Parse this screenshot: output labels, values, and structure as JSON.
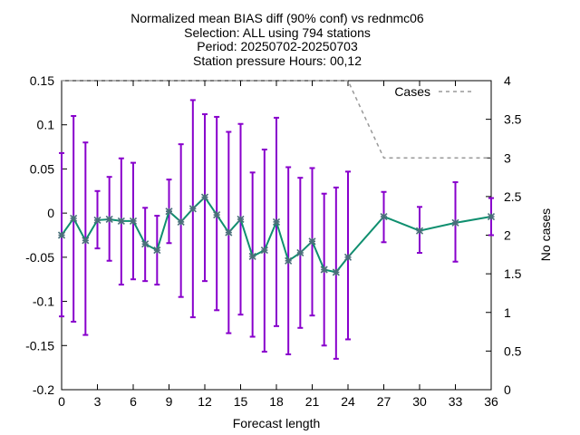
{
  "title_lines": [
    "Normalized mean BIAS diff (90% conf) vs rednmc06",
    "Selection: ALL using   794 stations",
    "Period: 20250702-20250703",
    "Station pressure   Hours: 00,12"
  ],
  "chart_data": {
    "type": "line",
    "xlabel": "Forecast length",
    "ylabel": "",
    "y2label": "No cases",
    "xlim": [
      0,
      36
    ],
    "ylim": [
      -0.2,
      0.15
    ],
    "y2lim": [
      0,
      4
    ],
    "x_ticks": [
      "0",
      "3",
      "6",
      "9",
      "12",
      "15",
      "18",
      "21",
      "24",
      "27",
      "30",
      "33",
      "36"
    ],
    "y_ticks": [
      "0.15",
      "0.1",
      "0.05",
      "0",
      "-0.05",
      "-0.1",
      "-0.15",
      "-0.2"
    ],
    "y2_ticks": [
      "4",
      "3.5",
      "3",
      "2.5",
      "2",
      "1.5",
      "1",
      "0.5",
      "0"
    ],
    "grid": false,
    "legend_position": "top-right",
    "series": [
      {
        "name": "",
        "role": "mean bias difference with 90% confidence bars",
        "axis": "left",
        "color": "#0f8f6f",
        "errorbar_color": "#8800cc",
        "x": [
          0,
          1,
          2,
          3,
          4,
          5,
          6,
          7,
          8,
          9,
          10,
          11,
          12,
          13,
          14,
          15,
          16,
          17,
          18,
          19,
          20,
          21,
          22,
          23,
          24,
          27,
          30,
          33,
          36
        ],
        "y": [
          -0.025,
          -0.006,
          -0.031,
          -0.008,
          -0.007,
          -0.009,
          -0.009,
          -0.035,
          -0.042,
          0.002,
          -0.01,
          0.005,
          0.018,
          -0.002,
          -0.022,
          -0.007,
          -0.049,
          -0.042,
          -0.01,
          -0.054,
          -0.045,
          -0.032,
          -0.064,
          -0.067,
          -0.05,
          -0.004,
          -0.02,
          -0.011,
          -0.004
        ],
        "low": [
          -0.117,
          -0.123,
          -0.138,
          -0.04,
          -0.054,
          -0.081,
          -0.075,
          -0.077,
          -0.081,
          -0.034,
          -0.095,
          -0.118,
          -0.077,
          -0.11,
          -0.136,
          -0.115,
          -0.14,
          -0.157,
          -0.128,
          -0.16,
          -0.13,
          -0.116,
          -0.15,
          -0.165,
          -0.143,
          -0.033,
          -0.045,
          -0.055,
          -0.025
        ],
        "high": [
          0.068,
          0.11,
          0.08,
          0.025,
          0.041,
          0.062,
          0.057,
          0.006,
          -0.003,
          0.038,
          0.078,
          0.128,
          0.112,
          0.109,
          0.092,
          0.101,
          0.046,
          0.072,
          0.108,
          0.052,
          0.04,
          0.051,
          0.022,
          0.029,
          0.047,
          0.024,
          0.007,
          0.035,
          0.017
        ]
      },
      {
        "name": "Cases",
        "axis": "right",
        "color": "#999999",
        "dash": "dashed",
        "x": [
          0,
          24,
          27,
          36
        ],
        "y": [
          4,
          4,
          3,
          3
        ]
      }
    ]
  }
}
